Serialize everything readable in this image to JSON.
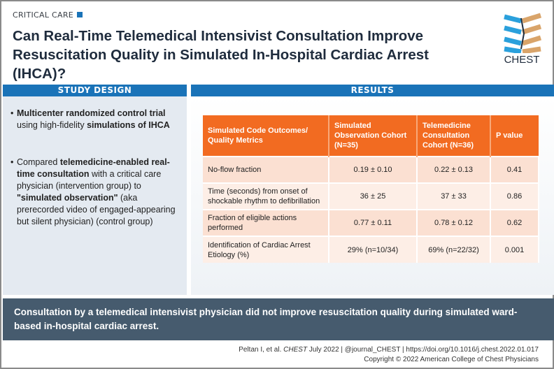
{
  "header": {
    "category": "CRITICAL CARE",
    "title": "Can Real-Time Telemedical Intensivist Consultation Improve Resuscitation Quality in Simulated In-Hospital Cardiac Arrest (IHCA)?",
    "logo_text": "CHEST"
  },
  "study_design": {
    "heading": "STUDY DESIGN",
    "bullets": [
      [
        {
          "t": "Multicenter randomized control trial",
          "b": true
        },
        {
          "t": " using high-fidelity ",
          "b": false
        },
        {
          "t": "simulations of IHCA",
          "b": true
        }
      ],
      [
        {
          "t": "Compared ",
          "b": false
        },
        {
          "t": "telemedicine-enabled real-time consultation",
          "b": true
        },
        {
          "t": " with a critical care physician (intervention group) to ",
          "b": false
        },
        {
          "t": "\"simulated observation\"",
          "b": true
        },
        {
          "t": " (aka prerecorded video of engaged-appearing but silent physician) (control group)",
          "b": false
        }
      ]
    ]
  },
  "results": {
    "heading": "RESULTS",
    "columns": [
      "Simulated Code Outcomes/ Quality Metrics",
      "Simulated Observation Cohort (N=35)",
      "Telemedicine Consultation Cohort (N=36)",
      "P value"
    ],
    "rows": [
      [
        "No-flow fraction",
        "0.19 ± 0.10",
        "0.22 ± 0.13",
        "0.41"
      ],
      [
        "Time (seconds) from onset of shockable rhythm to defibrillation",
        "36 ± 25",
        "37  ± 33",
        "0.86"
      ],
      [
        "Fraction of eligible actions performed",
        "0.77 ± 0.11",
        "0.78 ± 0.12",
        "0.62"
      ],
      [
        "Identification of Cardiac Arrest Etiology (%)",
        "29% (n=10/34)",
        "69% (n=22/32)",
        "0.001"
      ]
    ]
  },
  "conclusion": "Consultation by a telemedical intensivist physician did not improve resuscitation quality during simulated ward-based in-hospital cardiac arrest.",
  "footer": {
    "citation_pre": "Peltan I, et al. ",
    "citation_journal": "CHEST",
    "citation_post": " July 2022  |  @journal_CHEST  |  https://doi.org/10.1016/j.chest.2022.01.017",
    "copyright": "Copyright © 2022 American College of Chest Physicians"
  },
  "colors": {
    "blue": "#1a73b8",
    "orange": "#f26b21",
    "banner": "#465b6e"
  }
}
